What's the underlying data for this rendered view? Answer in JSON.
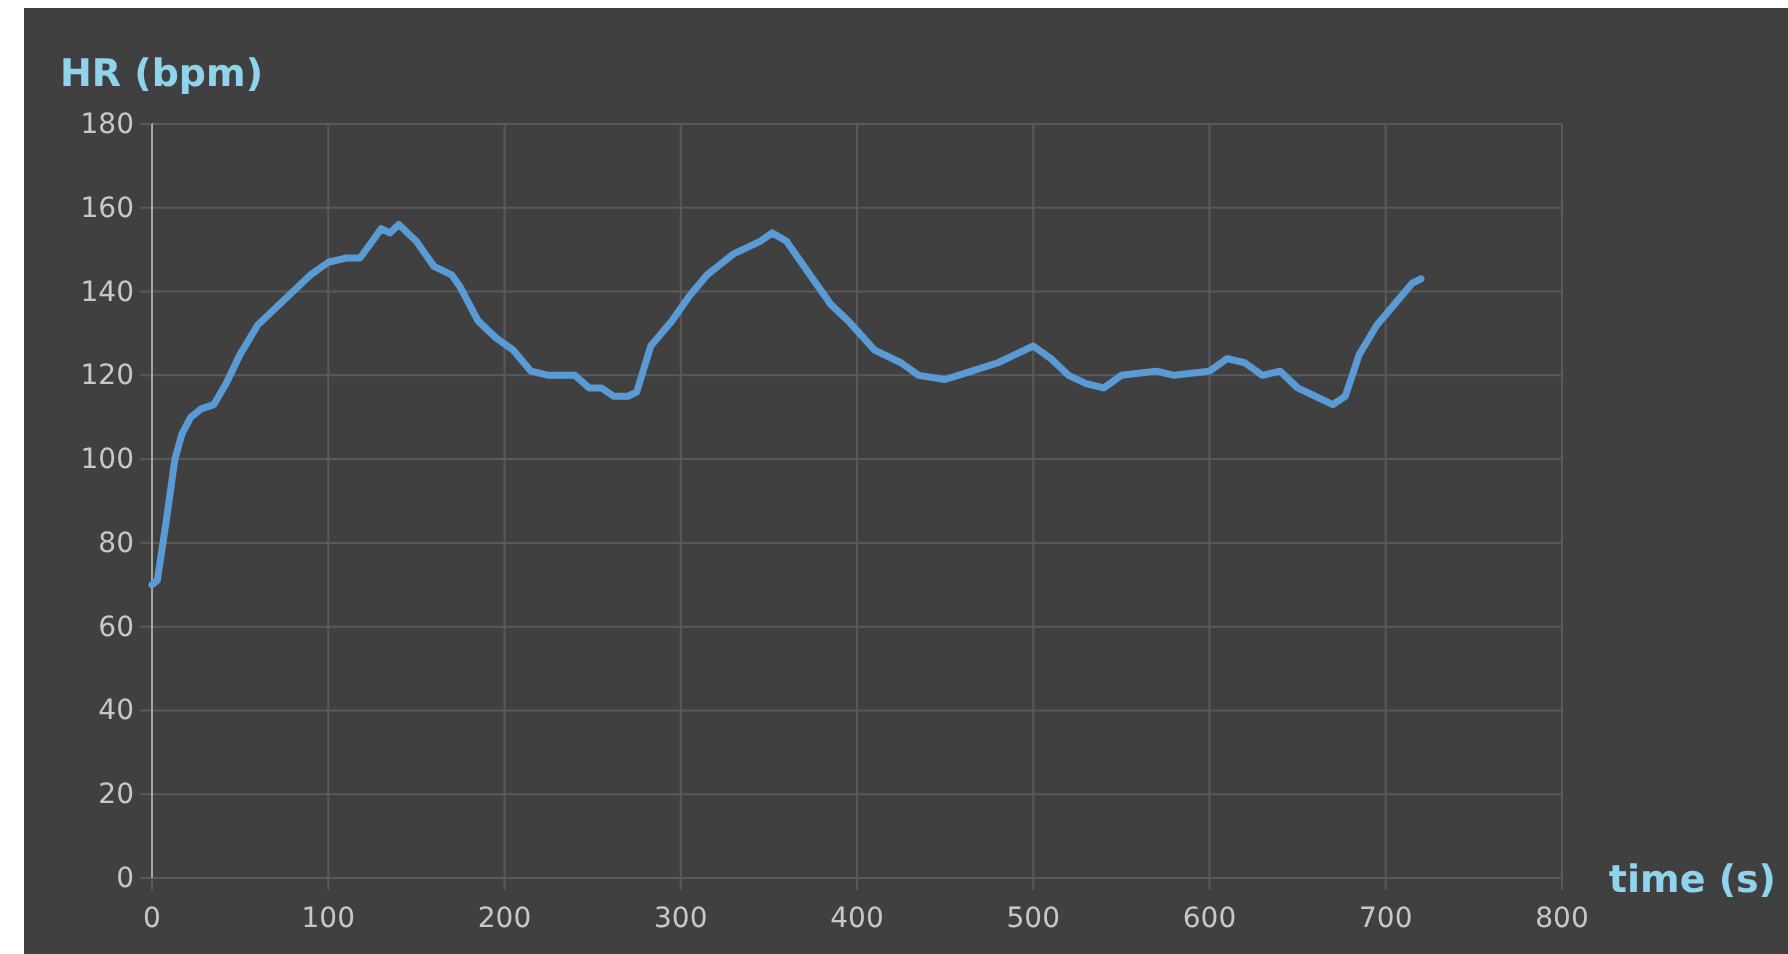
{
  "chart_data": {
    "type": "line",
    "ylabel": "HR (bpm)",
    "xlabel": "time (s)",
    "xlim": [
      0,
      800
    ],
    "xticks": [
      0,
      100,
      200,
      300,
      400,
      500,
      600,
      700,
      800
    ],
    "ylim": [
      0,
      180
    ],
    "yticks": [
      0,
      20,
      40,
      60,
      80,
      100,
      120,
      140,
      160,
      180
    ],
    "grid": true,
    "marker": "none",
    "line_style": "solid",
    "series": [
      {
        "color": "#5b9bd5",
        "x": [
          0,
          3,
          8,
          13,
          17,
          22,
          28,
          35,
          42,
          50,
          60,
          70,
          80,
          90,
          100,
          110,
          118,
          125,
          130,
          135,
          140,
          150,
          160,
          170,
          175,
          185,
          195,
          205,
          215,
          225,
          240,
          248,
          255,
          262,
          270,
          275,
          283,
          295,
          305,
          315,
          330,
          345,
          352,
          360,
          370,
          385,
          395,
          410,
          425,
          435,
          450,
          465,
          480,
          490,
          500,
          510,
          520,
          530,
          540,
          550,
          570,
          580,
          600,
          610,
          620,
          630,
          640,
          650,
          660,
          670,
          677,
          685,
          695,
          705,
          715,
          720
        ],
        "values": [
          70,
          71,
          85,
          100,
          106,
          110,
          112,
          113,
          118,
          125,
          132,
          136,
          140,
          144,
          147,
          148,
          148,
          152,
          155,
          154,
          156,
          152,
          146,
          144,
          141,
          133,
          129,
          126,
          121,
          120,
          120,
          117,
          117,
          115,
          115,
          116,
          127,
          133,
          139,
          144,
          149,
          152,
          154,
          152,
          146,
          137,
          133,
          126,
          123,
          120,
          119,
          121,
          123,
          125,
          127,
          124,
          120,
          118,
          117,
          120,
          121,
          120,
          121,
          124,
          123,
          120,
          121,
          117,
          115,
          113,
          115,
          125,
          132,
          137,
          142,
          143
        ]
      }
    ]
  }
}
